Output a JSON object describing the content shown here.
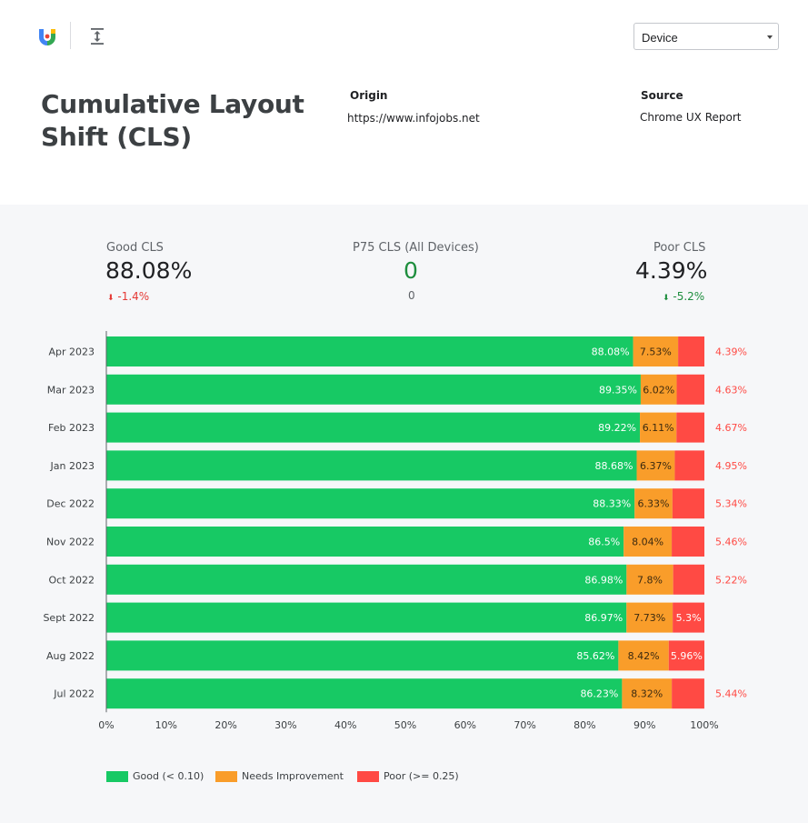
{
  "header": {
    "device_select": "Device",
    "title": "Cumulative Layout Shift (CLS)",
    "origin_label": "Origin",
    "origin_value": "https://www.infojobs.net",
    "source_label": "Source",
    "source_value": "Chrome UX Report"
  },
  "kpis": {
    "good": {
      "label": "Good CLS",
      "value": "88.08%",
      "delta": "-1.4%"
    },
    "p75": {
      "label": "P75 CLS (All Devices)",
      "value": "0",
      "sub": "0"
    },
    "poor": {
      "label": "Poor CLS",
      "value": "4.39%",
      "delta": "-5.2%"
    }
  },
  "colors": {
    "good": "#17c964",
    "needs": "#f99d2a",
    "poor": "#ff4a44",
    "delta_bad": "#e53935",
    "delta_good": "#1e8e3e",
    "p75_value": "#1e8e3e"
  },
  "legend": {
    "good": "Good (< 0.10)",
    "needs": "Needs Improvement",
    "poor": "Poor (>= 0.25)"
  },
  "chart_data": {
    "type": "bar",
    "orientation": "horizontal",
    "stacked": true,
    "categories": [
      "Apr 2023",
      "Mar 2023",
      "Feb 2023",
      "Jan 2023",
      "Dec 2022",
      "Nov 2022",
      "Oct 2022",
      "Sept 2022",
      "Aug 2022",
      "Jul 2022"
    ],
    "series": [
      {
        "name": "Good (< 0.10)",
        "values": [
          88.08,
          89.35,
          89.22,
          88.68,
          88.33,
          86.5,
          86.98,
          86.97,
          85.62,
          86.23
        ],
        "labels": [
          "88.08%",
          "89.35%",
          "89.22%",
          "88.68%",
          "88.33%",
          "86.5%",
          "86.98%",
          "86.97%",
          "85.62%",
          "86.23%"
        ]
      },
      {
        "name": "Needs Improvement",
        "values": [
          7.53,
          6.02,
          6.11,
          6.37,
          6.33,
          8.04,
          7.8,
          7.73,
          8.42,
          8.32
        ],
        "labels": [
          "7.53%",
          "6.02%",
          "6.11%",
          "6.37%",
          "6.33%",
          "8.04%",
          "7.8%",
          "7.73%",
          "8.42%",
          "8.32%"
        ]
      },
      {
        "name": "Poor (>= 0.25)",
        "values": [
          4.39,
          4.63,
          4.67,
          4.95,
          5.34,
          5.46,
          5.22,
          5.3,
          5.96,
          5.44
        ],
        "labels": [
          "4.39%",
          "4.63%",
          "4.67%",
          "4.95%",
          "5.34%",
          "5.46%",
          "5.22%",
          "5.3%",
          "5.96%",
          "5.44%"
        ]
      }
    ],
    "poor_label_inside": [
      false,
      false,
      false,
      false,
      false,
      false,
      false,
      true,
      true,
      false
    ],
    "xlim": [
      0,
      100
    ],
    "xticks": [
      "0%",
      "10%",
      "20%",
      "30%",
      "40%",
      "50%",
      "60%",
      "70%",
      "80%",
      "90%",
      "100%"
    ],
    "title": "",
    "xlabel": "",
    "ylabel": "",
    "legend_position": "bottom-left",
    "grid": false
  }
}
